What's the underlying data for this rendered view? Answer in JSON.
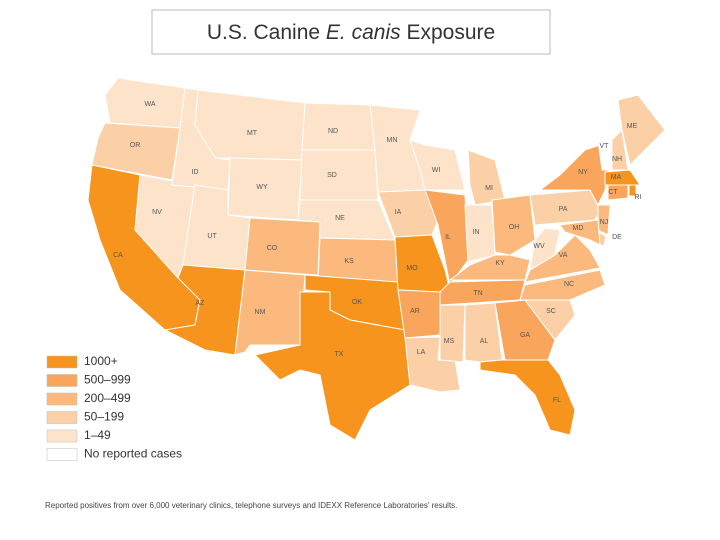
{
  "title": {
    "before": "U.S. Canine",
    "italic": "E. canis",
    "after": "Exposure"
  },
  "legend": [
    {
      "label": "1000+",
      "color": "#f7941e"
    },
    {
      "label": "500–999",
      "color": "#f9a65c"
    },
    {
      "label": "200–499",
      "color": "#fbb97e"
    },
    {
      "label": "50–199",
      "color": "#fcd0a6"
    },
    {
      "label": "1–49",
      "color": "#fde3ca"
    },
    {
      "label": "No reported cases",
      "color": "#ffffff"
    }
  ],
  "states": [
    {
      "abbr": "WA",
      "level": 4
    },
    {
      "abbr": "OR",
      "level": 3
    },
    {
      "abbr": "CA",
      "level": 0
    },
    {
      "abbr": "NV",
      "level": 4
    },
    {
      "abbr": "ID",
      "level": 4
    },
    {
      "abbr": "MT",
      "level": 4
    },
    {
      "abbr": "WY",
      "level": 4
    },
    {
      "abbr": "UT",
      "level": 4
    },
    {
      "abbr": "AZ",
      "level": 0
    },
    {
      "abbr": "CO",
      "level": 2
    },
    {
      "abbr": "NM",
      "level": 2
    },
    {
      "abbr": "ND",
      "level": 4
    },
    {
      "abbr": "SD",
      "level": 4
    },
    {
      "abbr": "NE",
      "level": 4
    },
    {
      "abbr": "KS",
      "level": 2
    },
    {
      "abbr": "OK",
      "level": 0
    },
    {
      "abbr": "TX",
      "level": 0
    },
    {
      "abbr": "MN",
      "level": 4
    },
    {
      "abbr": "IA",
      "level": 3
    },
    {
      "abbr": "MO",
      "level": 0
    },
    {
      "abbr": "AR",
      "level": 1
    },
    {
      "abbr": "LA",
      "level": 3
    },
    {
      "abbr": "WI",
      "level": 4
    },
    {
      "abbr": "IL",
      "level": 1
    },
    {
      "abbr": "MI",
      "level": 3
    },
    {
      "abbr": "IN",
      "level": 4
    },
    {
      "abbr": "OH",
      "level": 2
    },
    {
      "abbr": "KY",
      "level": 2
    },
    {
      "abbr": "TN",
      "level": 1
    },
    {
      "abbr": "MS",
      "level": 3
    },
    {
      "abbr": "AL",
      "level": 3
    },
    {
      "abbr": "GA",
      "level": 1
    },
    {
      "abbr": "FL",
      "level": 0
    },
    {
      "abbr": "SC",
      "level": 3
    },
    {
      "abbr": "NC",
      "level": 2
    },
    {
      "abbr": "VA",
      "level": 2
    },
    {
      "abbr": "WV",
      "level": 4
    },
    {
      "abbr": "PA",
      "level": 3
    },
    {
      "abbr": "NY",
      "level": 1
    },
    {
      "abbr": "VT",
      "level": 5
    },
    {
      "abbr": "NH",
      "level": 3
    },
    {
      "abbr": "ME",
      "level": 3
    },
    {
      "abbr": "MA",
      "level": 0
    },
    {
      "abbr": "RI",
      "level": 0
    },
    {
      "abbr": "CT",
      "level": 1
    },
    {
      "abbr": "NJ",
      "level": 2
    },
    {
      "abbr": "DE",
      "level": 3
    },
    {
      "abbr": "MD",
      "level": 2
    }
  ],
  "footnote": "Reported positives from over 6,000 veterinary clinics, telephone surveys and IDEXX Reference Laboratories' results."
}
